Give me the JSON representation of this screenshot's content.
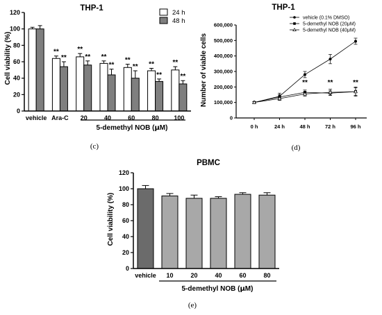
{
  "panel_labels": {
    "c": "(c)",
    "d": "(d)",
    "e": "(e)"
  },
  "chart_data": [
    {
      "id": "c",
      "type": "bar",
      "title": "THP-1",
      "ylabel": "Cell viability (%)",
      "xlabel": "5-demethyl NOB (μM)",
      "xlabel_prefix": "5-demethyl NOB (",
      "xlabel_unit": "μ",
      "xlabel_suffix": "M)",
      "categories": [
        "vehicle",
        "Ara-C",
        "20",
        "40",
        "60",
        "80",
        "100"
      ],
      "ylim": [
        0,
        120
      ],
      "yticks": [
        "0",
        "20",
        "40",
        "60",
        "80",
        "100",
        "120"
      ],
      "legend_position": "top-right",
      "series": [
        {
          "name": "24 h",
          "color": "#ffffff",
          "values": [
            100,
            64,
            66,
            58,
            53,
            49,
            50
          ],
          "errors": [
            2,
            3,
            4,
            3,
            4,
            3,
            4
          ],
          "significance": [
            "",
            "**",
            "**",
            "**",
            "**",
            "**",
            "**"
          ]
        },
        {
          "name": "48 h",
          "color": "#7f7f7f",
          "values": [
            100,
            54,
            56,
            44,
            40,
            36,
            33
          ],
          "errors": [
            4,
            6,
            5,
            7,
            9,
            3,
            4
          ],
          "significance": [
            "",
            "**",
            "**",
            "**",
            "**",
            "**",
            "**"
          ]
        }
      ]
    },
    {
      "id": "d",
      "type": "line",
      "title": "THP-1",
      "ylabel": "Number of viable cells",
      "xlabel": "",
      "x": [
        "0 h",
        "24 h",
        "48 h",
        "72 h",
        "96 h"
      ],
      "ylim": [
        0,
        600000
      ],
      "yticks": [
        "0",
        "100,000",
        "200,000",
        "300,000",
        "400,000",
        "500,000",
        "600,000"
      ],
      "legend_position": "top-right",
      "significance": [
        "",
        "",
        "**",
        "**",
        "**"
      ],
      "series": [
        {
          "name": "vehicle (0.1% DMSO)",
          "marker": "circle",
          "values": [
            100000,
            140000,
            280000,
            380000,
            495000
          ],
          "errors": [
            5000,
            20000,
            20000,
            30000,
            20000
          ]
        },
        {
          "name": "5-demethyl NOB (20μM)",
          "marker": "square",
          "values": [
            100000,
            135000,
            165000,
            160000,
            170000
          ],
          "errors": [
            5000,
            15000,
            15000,
            15000,
            30000
          ]
        },
        {
          "name": "5-demethyl NOB (40μM)",
          "marker": "triangle",
          "values": [
            100000,
            125000,
            155000,
            165000,
            170000
          ],
          "errors": [
            5000,
            12000,
            15000,
            20000,
            25000
          ]
        }
      ]
    },
    {
      "id": "e",
      "type": "bar",
      "title": "PBMC",
      "ylabel": "Cell viability (%)",
      "xlabel": "5-demethyl NOB (μM)",
      "xlabel_prefix": "5-demethyl NOB (",
      "xlabel_unit": "μ",
      "xlabel_suffix": "M)",
      "categories": [
        "vehicle",
        "10",
        "20",
        "40",
        "60",
        "80"
      ],
      "ylim": [
        0,
        120
      ],
      "yticks": [
        "0",
        "20",
        "40",
        "60",
        "80",
        "100",
        "120"
      ],
      "series": [
        {
          "values": [
            100,
            91,
            88,
            88,
            93,
            92
          ],
          "errors": [
            4,
            3,
            4,
            2,
            2,
            3
          ],
          "colors": [
            "#6b6b6b",
            "#a8a8a8",
            "#a8a8a8",
            "#a8a8a8",
            "#a8a8a8",
            "#a8a8a8"
          ]
        }
      ]
    }
  ]
}
